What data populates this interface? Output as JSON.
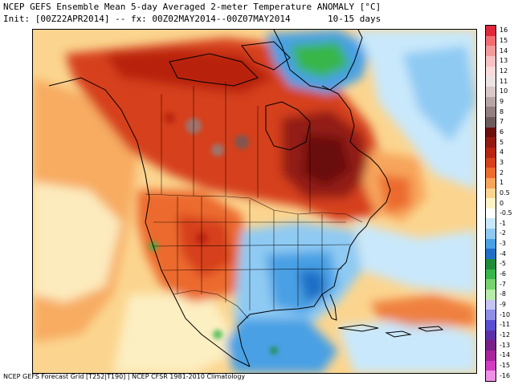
{
  "header": {
    "title_line1": "NCEP GEFS Ensemble Mean 5-day Averaged 2-meter Temperature ANOMALY [°C]",
    "title_line2": "Init: [00Z22APR2014] -- fx: 00Z02MAY2014--00Z07MAY2014       10-15 days"
  },
  "footer": {
    "text": "NCEP GEFS Forecast Grid [T252|T190] | NCEP CFSR 1981-2010 Climatology"
  },
  "colorbar": {
    "levels": [
      {
        "label": "16",
        "color": "#e0283c"
      },
      {
        "label": "15",
        "color": "#f06d73"
      },
      {
        "label": "14",
        "color": "#f39a9c"
      },
      {
        "label": "13",
        "color": "#f7c2c3"
      },
      {
        "label": "12",
        "color": "#fadbdc"
      },
      {
        "label": "11",
        "color": "#ece3e3"
      },
      {
        "label": "10",
        "color": "#d8c8c8"
      },
      {
        "label": "9",
        "color": "#b7a5a5"
      },
      {
        "label": "8",
        "color": "#928080"
      },
      {
        "label": "7",
        "color": "#6e5c5c"
      },
      {
        "label": "6",
        "color": "#6b0f0f"
      },
      {
        "label": "5",
        "color": "#931a12"
      },
      {
        "label": "4",
        "color": "#b8240f"
      },
      {
        "label": "3",
        "color": "#d6401a"
      },
      {
        "label": "2",
        "color": "#ec6b2d"
      },
      {
        "label": "1",
        "color": "#f7a55b"
      },
      {
        "label": "0.5",
        "color": "#fbd58f"
      },
      {
        "label": "0",
        "color": "#fdf2c8"
      },
      {
        "label": "-0.5",
        "color": "#ffffff"
      },
      {
        "label": "-1",
        "color": "#c9e8fb"
      },
      {
        "label": "-2",
        "color": "#8fcaf3"
      },
      {
        "label": "-3",
        "color": "#4aa0e4"
      },
      {
        "label": "-4",
        "color": "#1f6fc6"
      },
      {
        "label": "-5",
        "color": "#1e8c3a"
      },
      {
        "label": "-6",
        "color": "#37b64a"
      },
      {
        "label": "-7",
        "color": "#77d36f"
      },
      {
        "label": "-8",
        "color": "#b6eba9"
      },
      {
        "label": "-9",
        "color": "#c5c5f3"
      },
      {
        "label": "-10",
        "color": "#8f8fe9"
      },
      {
        "label": "-11",
        "color": "#5a4fd2"
      },
      {
        "label": "-12",
        "color": "#5c2fa8"
      },
      {
        "label": "-13",
        "color": "#7a1f8a"
      },
      {
        "label": "-14",
        "color": "#a8249d"
      },
      {
        "label": "-15",
        "color": "#d13cc3"
      },
      {
        "label": "-16",
        "color": "#f08fe6"
      }
    ]
  }
}
